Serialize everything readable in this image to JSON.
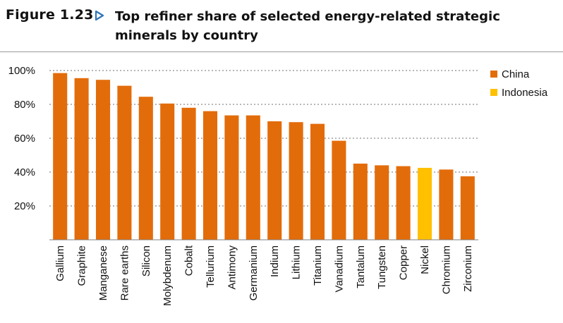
{
  "figure": {
    "label": "Figure 1.23",
    "title": "Top refiner share of selected energy-related strategic minerals by country"
  },
  "colors": {
    "China": "#E36C0A",
    "Indonesia": "#FFC000",
    "gridline": "#8c8c8c",
    "axis": "#7f7f7f"
  },
  "icons": {
    "figure_marker": "triangle-right-outline-icon"
  },
  "chart_data": {
    "type": "bar",
    "title": "Top refiner share of selected energy-related strategic minerals by country",
    "xlabel": "",
    "ylabel": "",
    "ylim": [
      0,
      100
    ],
    "yticks": [
      20,
      40,
      60,
      80,
      100
    ],
    "ytick_labels": [
      "20%",
      "40%",
      "60%",
      "80%",
      "100%"
    ],
    "grid": "horizontal dotted",
    "legend_position": "top-right",
    "legend": [
      "China",
      "Indonesia"
    ],
    "categories": [
      "Gallium",
      "Graphite",
      "Manganese",
      "Rare earths",
      "Silicon",
      "Molybdenum",
      "Cobalt",
      "Tellurium",
      "Antimony",
      "Germanium",
      "Indium",
      "Lithium",
      "Titanium",
      "Vanadium",
      "Tantalum",
      "Tungsten",
      "Copper",
      "Nickel",
      "Chromium",
      "Zirconium"
    ],
    "values": [
      98.5,
      95.5,
      94.5,
      91,
      84.5,
      80.5,
      78,
      76,
      73.5,
      73.5,
      70,
      69.5,
      68.5,
      58.5,
      45,
      44,
      43.5,
      42.5,
      41.5,
      37.5
    ],
    "country": [
      "China",
      "China",
      "China",
      "China",
      "China",
      "China",
      "China",
      "China",
      "China",
      "China",
      "China",
      "China",
      "China",
      "China",
      "China",
      "China",
      "China",
      "Indonesia",
      "China",
      "China"
    ]
  }
}
